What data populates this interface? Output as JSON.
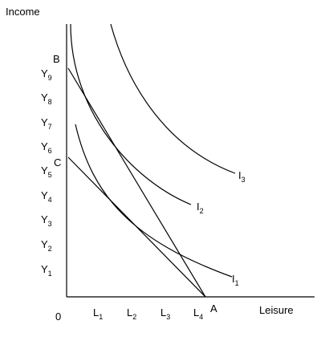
{
  "axes": {
    "y_label": "Income",
    "x_label": "Leisure",
    "origin": "0"
  },
  "y_ticks": [
    {
      "base": "Y",
      "sub": "9"
    },
    {
      "base": "Y",
      "sub": "8"
    },
    {
      "base": "Y",
      "sub": "7"
    },
    {
      "base": "Y",
      "sub": "6"
    },
    {
      "base": "Y",
      "sub": "5"
    },
    {
      "base": "Y",
      "sub": "4"
    },
    {
      "base": "Y",
      "sub": "3"
    },
    {
      "base": "Y",
      "sub": "2"
    },
    {
      "base": "Y",
      "sub": "1"
    }
  ],
  "x_ticks": [
    {
      "base": "L",
      "sub": "1"
    },
    {
      "base": "L",
      "sub": "2"
    },
    {
      "base": "L",
      "sub": "3"
    },
    {
      "base": "L",
      "sub": "4"
    }
  ],
  "points": {
    "B": "B",
    "C": "C",
    "A": "A"
  },
  "curves": [
    {
      "base": "I",
      "sub": "1"
    },
    {
      "base": "I",
      "sub": "2"
    },
    {
      "base": "I",
      "sub": "3"
    }
  ],
  "colors": {
    "line": "#000000",
    "background": "#ffffff"
  }
}
